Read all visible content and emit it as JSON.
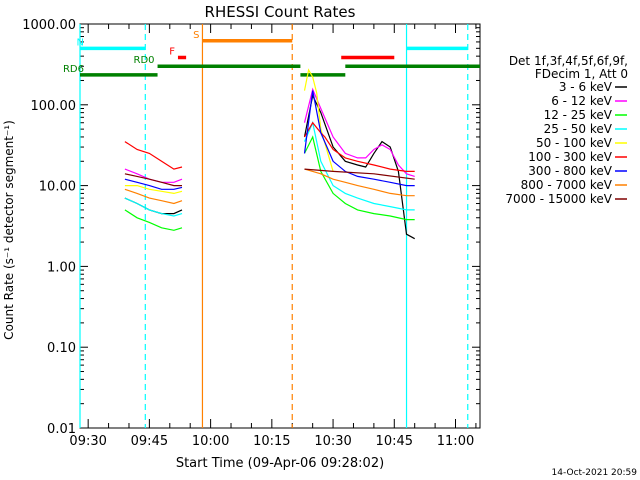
{
  "chart_data": {
    "type": "line",
    "title": "RHESSI Count Rates",
    "xlabel": "Start Time (09-Apr-06 09:28:02)",
    "ylabel": "Count Rate (s⁻¹ detector segment⁻¹)",
    "yscale": "log",
    "ylim": [
      0.01,
      1000
    ],
    "xlim": [
      "09:28",
      "11:06"
    ],
    "x_ticks": [
      "09:30",
      "09:45",
      "10:00",
      "10:15",
      "10:30",
      "10:45",
      "11:00"
    ],
    "y_ticks": [
      "0.01",
      "0.10",
      "1.00",
      "10.00",
      "100.00",
      "1000.00"
    ],
    "legend_position": "right",
    "legend_header": [
      "Det 1f,3f,4f,5f,6f,9f,",
      "FDecim 1, Att 0"
    ],
    "series": [
      {
        "name": "3 - 6 keV",
        "color": "#000000",
        "x": [
          "09:39",
          "09:42",
          "09:45",
          "09:48",
          "09:51",
          "09:53",
          "10:23",
          "10:25",
          "10:27",
          "10:30",
          "10:33",
          "10:36",
          "10:38",
          "10:40",
          "10:42",
          "10:44",
          "10:46",
          "10:48",
          "10:50"
        ],
        "y": [
          7,
          6,
          5,
          4.5,
          4.5,
          5,
          40,
          130,
          80,
          30,
          20,
          18,
          17,
          25,
          35,
          30,
          15,
          2.5,
          2.2
        ]
      },
      {
        "name": "6 - 12 keV",
        "color": "#ff00ff",
        "x": [
          "09:39",
          "09:42",
          "09:45",
          "09:48",
          "09:51",
          "09:53",
          "10:23",
          "10:25",
          "10:27",
          "10:30",
          "10:33",
          "10:36",
          "10:38",
          "10:40",
          "10:42",
          "10:44",
          "10:46",
          "10:48",
          "10:50"
        ],
        "y": [
          16,
          14,
          12,
          11,
          11,
          12,
          60,
          155,
          90,
          40,
          25,
          22,
          22,
          28,
          32,
          28,
          18,
          14,
          13
        ]
      },
      {
        "name": "12 - 25 keV",
        "color": "#00ff00",
        "x": [
          "09:39",
          "09:42",
          "09:45",
          "09:48",
          "09:51",
          "09:53",
          "10:23",
          "10:25",
          "10:27",
          "10:30",
          "10:33",
          "10:36",
          "10:40",
          "10:44",
          "10:48",
          "10:50"
        ],
        "y": [
          5,
          4,
          3.5,
          3,
          2.8,
          3,
          25,
          40,
          15,
          8,
          6,
          5,
          4.5,
          4.2,
          3.8,
          3.8
        ]
      },
      {
        "name": "25 - 50 keV",
        "color": "#00ffff",
        "x": [
          "09:39",
          "09:42",
          "09:45",
          "09:48",
          "09:51",
          "09:53",
          "10:23",
          "10:25",
          "10:27",
          "10:30",
          "10:33",
          "10:36",
          "10:40",
          "10:44",
          "10:48",
          "10:50"
        ],
        "y": [
          7,
          6,
          5,
          4.5,
          4.2,
          4.5,
          35,
          60,
          20,
          10,
          8,
          7,
          6,
          5.5,
          5,
          5
        ]
      },
      {
        "name": "50 - 100 keV",
        "color": "#ffff00",
        "x": [
          "09:39",
          "09:42",
          "09:45",
          "09:48",
          "09:51",
          "09:53",
          "10:23",
          "10:24",
          "10:25",
          "10:26",
          "10:27",
          "10:30"
        ],
        "y": [
          10,
          10,
          9,
          8.5,
          8,
          8.5,
          150,
          270,
          220,
          140,
          50,
          15
        ]
      },
      {
        "name": "100 - 300 keV",
        "color": "#ff0000",
        "x": [
          "09:39",
          "09:42",
          "09:45",
          "09:48",
          "09:51",
          "09:53",
          "10:23",
          "10:25",
          "10:27",
          "10:28",
          "10:30",
          "10:33",
          "10:36",
          "10:40",
          "10:44",
          "10:48",
          "10:50"
        ],
        "y": [
          35,
          28,
          25,
          20,
          16,
          17,
          40,
          60,
          45,
          40,
          28,
          22,
          20,
          18,
          16,
          15,
          15
        ]
      },
      {
        "name": "300 - 800 keV",
        "color": "#0000ff",
        "x": [
          "09:39",
          "09:42",
          "09:45",
          "09:48",
          "09:51",
          "09:53",
          "10:23",
          "10:25",
          "10:27",
          "10:30",
          "10:33",
          "10:36",
          "10:40",
          "10:44",
          "10:48",
          "10:50"
        ],
        "y": [
          12,
          11,
          10,
          9,
          9,
          9.5,
          25,
          150,
          45,
          20,
          15,
          13,
          12,
          11,
          10,
          10
        ]
      },
      {
        "name": "800 - 7000 keV",
        "color": "#ff8000",
        "x": [
          "09:39",
          "09:42",
          "09:45",
          "09:48",
          "09:51",
          "09:53",
          "10:23",
          "10:25",
          "10:27",
          "10:30",
          "10:33",
          "10:36",
          "10:40",
          "10:44",
          "10:48",
          "10:50"
        ],
        "y": [
          9,
          8,
          7,
          6.5,
          6,
          6.5,
          16,
          15,
          14,
          12,
          11,
          10,
          9,
          8,
          7.5,
          7.5
        ]
      },
      {
        "name": "7000 - 15000 keV",
        "color": "#800000",
        "x": [
          "09:39",
          "09:42",
          "09:45",
          "09:48",
          "09:51",
          "09:53",
          "10:23",
          "10:30",
          "10:40",
          "10:50"
        ],
        "y": [
          14,
          13,
          12,
          11,
          10,
          10,
          16,
          15,
          14,
          12
        ]
      }
    ],
    "vertical_markers": [
      {
        "x": "09:28",
        "color": "#00ffff",
        "style": "solid"
      },
      {
        "x": "09:44",
        "color": "#00ffff",
        "style": "dashed"
      },
      {
        "x": "09:58",
        "color": "#ff8000",
        "style": "solid"
      },
      {
        "x": "10:20",
        "color": "#ff8000",
        "style": "dashed"
      },
      {
        "x": "10:48",
        "color": "#00ffff",
        "style": "solid"
      },
      {
        "x": "11:03",
        "color": "#00ffff",
        "style": "dashed"
      }
    ],
    "flag_bars": [
      {
        "label": "N",
        "color": "#00ffff",
        "y": 500,
        "segments": [
          [
            "09:28",
            "09:44"
          ],
          [
            "10:48",
            "11:03"
          ]
        ]
      },
      {
        "label": "S",
        "color": "#ff8000",
        "y": 620,
        "segments": [
          [
            "09:58",
            "10:20"
          ]
        ]
      },
      {
        "label": "F",
        "color": "#ff0000",
        "y": 385,
        "segments": [
          [
            "09:52",
            "09:54"
          ],
          [
            "10:32",
            "10:45"
          ]
        ]
      },
      {
        "label": "RD0",
        "color": "#008000",
        "y": 300,
        "segments": [
          [
            "09:47",
            "10:22"
          ],
          [
            "10:33",
            "11:06"
          ]
        ]
      },
      {
        "label": "RD6",
        "color": "#008000",
        "y": 235,
        "segments": [
          [
            "09:28",
            "09:47"
          ],
          [
            "10:22",
            "10:33"
          ]
        ]
      }
    ],
    "footer_date": "14-Oct-2021 20:59"
  }
}
